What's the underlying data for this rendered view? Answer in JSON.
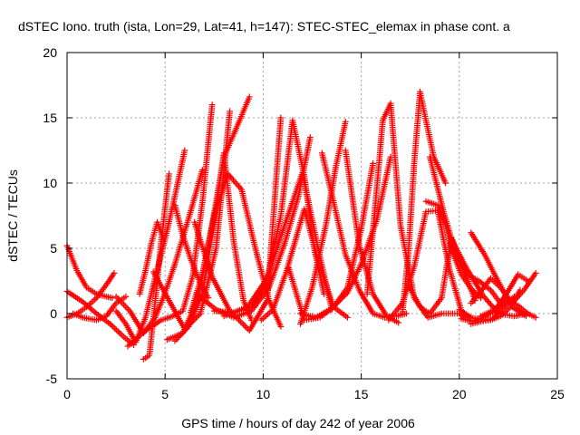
{
  "chart_data": {
    "type": "scatter",
    "title": "dSTEC Iono. truth (ista, Lon=29, Lat=41, h=147): STEC-STEC_elemax in phase cont. a",
    "xlabel": "GPS time / hours of day 242 of year 2006",
    "ylabel": "dSTEC  / TECUs",
    "xlim": [
      0,
      25
    ],
    "ylim": [
      -5,
      20
    ],
    "xticks": [
      0,
      5,
      10,
      15,
      20,
      25
    ],
    "yticks": [
      -5,
      0,
      5,
      10,
      15,
      20
    ],
    "xtick_labels": [
      "0",
      "5",
      "10",
      "15",
      "20",
      "25"
    ],
    "ytick_labels": [
      "-5",
      "0",
      "5",
      "10",
      "15",
      "20"
    ],
    "grid": true,
    "marker": "+",
    "colors": {
      "series": "#ff0000",
      "grid": "#a0a0a0",
      "axis": "#000000"
    },
    "series": [
      {
        "x": [
          0.0,
          0.5,
          1.0,
          1.5,
          2.0,
          2.3
        ],
        "y": [
          5.2,
          3.3,
          2.0,
          1.5,
          1.3,
          1.2
        ]
      },
      {
        "x": [
          0.0,
          0.8,
          1.5,
          2.2,
          2.9,
          3.4
        ],
        "y": [
          1.7,
          0.9,
          0.0,
          -0.8,
          -1.8,
          -2.4
        ]
      },
      {
        "x": [
          0.0,
          0.5,
          1.0,
          1.5,
          2.0,
          2.4
        ],
        "y": [
          -0.3,
          0.0,
          0.5,
          1.2,
          2.2,
          3.1
        ]
      },
      {
        "x": [
          0.3,
          0.8,
          1.5,
          2.0,
          2.5,
          3.0
        ],
        "y": [
          0.0,
          -0.3,
          -0.5,
          -0.2,
          0.8,
          1.3
        ]
      },
      {
        "x": [
          2.5,
          3.2,
          3.9,
          4.5,
          5.0,
          5.5,
          6.2,
          6.9
        ],
        "y": [
          1.3,
          0.2,
          -1.5,
          -0.3,
          1.6,
          3.8,
          7.3,
          11.0
        ]
      },
      {
        "x": [
          3.9,
          4.2,
          4.5,
          4.8,
          5.2
        ],
        "y": [
          -3.5,
          -3.2,
          1.0,
          5.5,
          10.7
        ]
      },
      {
        "x": [
          2.5,
          3.0,
          3.5,
          4.0,
          4.5,
          5.0,
          5.5,
          6.0
        ],
        "y": [
          0.2,
          -0.8,
          -2.2,
          -0.3,
          2.8,
          5.7,
          9.0,
          12.5
        ]
      },
      {
        "x": [
          3.1,
          4.0,
          4.8,
          5.4,
          5.9,
          6.4,
          6.9,
          7.4
        ],
        "y": [
          -2.5,
          -1.3,
          -0.5,
          -0.2,
          0.2,
          2.8,
          8.5,
          16.0
        ]
      },
      {
        "x": [
          3.7,
          4.0,
          4.3,
          4.6,
          4.9
        ],
        "y": [
          1.5,
          3.3,
          5.4,
          7.0,
          5.8
        ]
      },
      {
        "x": [
          4.4,
          5.2,
          6.0,
          6.8,
          7.6,
          8.3
        ],
        "y": [
          3.2,
          1.0,
          -1.2,
          0.0,
          5.0,
          15.5
        ]
      },
      {
        "x": [
          5.1,
          5.9,
          6.7,
          7.4,
          8.0,
          8.8,
          9.3
        ],
        "y": [
          -2.0,
          -1.5,
          1.2,
          6.8,
          12.0,
          14.8,
          16.6
        ]
      },
      {
        "x": [
          5.5,
          6.2,
          6.9,
          7.5,
          8.0,
          8.5,
          9.0,
          9.4
        ],
        "y": [
          -2.1,
          -1.0,
          1.5,
          7.0,
          12.3,
          5.5,
          1.0,
          -0.5
        ]
      },
      {
        "x": [
          5.5,
          5.9,
          6.3,
          6.8,
          7.2
        ],
        "y": [
          8.3,
          6.0,
          4.2,
          2.3,
          1.2
        ]
      },
      {
        "x": [
          6.3,
          6.9,
          7.5,
          8.2,
          8.9,
          9.6,
          10.3,
          10.9
        ],
        "y": [
          0.1,
          3.0,
          7.5,
          10.7,
          9.5,
          5.0,
          1.0,
          -1.0
        ]
      },
      {
        "x": [
          6.5,
          7.4,
          8.3,
          9.3,
          10.2,
          10.9
        ],
        "y": [
          7.0,
          2.8,
          0.2,
          -1.3,
          1.0,
          15.0
        ]
      },
      {
        "x": [
          6.6,
          7.6,
          8.5,
          9.4,
          10.3,
          11.1,
          11.8,
          12.4
        ],
        "y": [
          1.5,
          0.3,
          -0.3,
          0.2,
          2.0,
          5.4,
          9.0,
          13.5
        ]
      },
      {
        "x": [
          7.5,
          8.5,
          9.4,
          10.2,
          10.9,
          11.5,
          12.1,
          12.6,
          13.1
        ],
        "y": [
          0.2,
          0.1,
          0.5,
          2.5,
          7.5,
          14.8,
          10.5,
          5.0,
          1.5
        ]
      },
      {
        "x": [
          8.0,
          9.2,
          10.2,
          11.1,
          12.0,
          12.8,
          13.5
        ],
        "y": [
          -0.2,
          0.5,
          2.7,
          6.8,
          10.8,
          5.0,
          0.3
        ]
      },
      {
        "x": [
          9.9,
          10.5,
          11.2,
          12.1,
          12.9,
          13.6,
          14.3
        ],
        "y": [
          -0.5,
          0.3,
          3.3,
          8.0,
          3.5,
          0.5,
          -0.3
        ]
      },
      {
        "x": [
          11.9,
          12.7,
          13.5,
          14.3,
          15.0,
          15.8,
          16.5
        ],
        "y": [
          0.0,
          -0.3,
          0.4,
          1.6,
          3.8,
          7.2,
          12.0
        ]
      },
      {
        "x": [
          11.3,
          12.1,
          12.9,
          13.6,
          14.3,
          15.0,
          15.6
        ],
        "y": [
          3.5,
          -0.5,
          -0.3,
          0.5,
          2.0,
          6.5,
          11.5
        ]
      },
      {
        "x": [
          11.9,
          12.5,
          13.2,
          13.7,
          14.2
        ],
        "y": [
          -0.8,
          2.0,
          6.8,
          11.2,
          14.7
        ]
      },
      {
        "x": [
          13.0,
          13.6,
          14.2,
          14.9,
          15.6,
          16.2,
          16.8,
          17.3
        ],
        "y": [
          12.3,
          8.5,
          4.5,
          1.8,
          0.0,
          -0.3,
          -0.2,
          0.0
        ]
      },
      {
        "x": [
          14.2,
          14.9,
          15.6,
          16.3,
          16.9
        ],
        "y": [
          12.5,
          5.2,
          1.5,
          -0.2,
          -0.7
        ]
      },
      {
        "x": [
          15.3,
          15.7,
          16.1,
          16.5,
          17.0,
          17.7,
          18.4,
          19.1,
          20.0,
          20.5
        ],
        "y": [
          1.5,
          8.0,
          14.8,
          16.1,
          6.8,
          1.2,
          -0.3,
          0.0,
          0.0,
          -0.5
        ]
      },
      {
        "x": [
          16.4,
          17.1,
          17.7,
          18.3,
          18.9,
          19.5,
          20.2
        ],
        "y": [
          -0.5,
          0.8,
          3.6,
          7.8,
          7.9,
          3.4,
          -0.3
        ]
      },
      {
        "x": [
          17.1,
          17.4,
          17.7,
          18.0,
          18.3,
          18.7,
          19.3
        ],
        "y": [
          0.0,
          4.5,
          11.5,
          17.0,
          14.8,
          12.0,
          10.0
        ]
      },
      {
        "x": [
          18.5,
          19.2,
          19.8,
          20.4,
          21.0,
          21.6,
          22.2
        ],
        "y": [
          12.0,
          7.8,
          4.7,
          3.0,
          2.5,
          1.8,
          0.6
        ]
      },
      {
        "x": [
          18.3,
          18.9,
          19.3,
          19.7,
          20.1,
          20.6,
          21.1
        ],
        "y": [
          8.6,
          8.3,
          6.8,
          4.5,
          3.0,
          1.9,
          1.2
        ]
      },
      {
        "x": [
          17.4,
          18.0,
          18.5,
          19.1,
          19.6,
          20.2,
          20.8
        ],
        "y": [
          2.2,
          0.5,
          0.0,
          1.2,
          5.8,
          3.5,
          1.0
        ]
      },
      {
        "x": [
          19.6,
          20.4,
          21.2,
          22.0,
          22.8,
          23.5
        ],
        "y": [
          5.7,
          3.4,
          1.4,
          0.0,
          -0.2,
          0.0
        ]
      },
      {
        "x": [
          20.6,
          21.3,
          22.0,
          22.7,
          23.4
        ],
        "y": [
          6.2,
          4.5,
          2.4,
          0.5,
          -0.2
        ]
      },
      {
        "x": [
          20.1,
          20.7,
          21.2,
          21.8,
          22.4,
          23.0,
          23.5
        ],
        "y": [
          -0.4,
          -0.6,
          -0.3,
          0.2,
          1.5,
          3.0,
          2.5
        ]
      },
      {
        "x": [
          20.6,
          21.1,
          21.6,
          22.1,
          22.6,
          23.1
        ],
        "y": [
          -0.8,
          -0.6,
          -0.5,
          -0.2,
          0.5,
          1.8
        ]
      },
      {
        "x": [
          20.6,
          21.1,
          21.6,
          22.1,
          22.7,
          23.3,
          23.9
        ],
        "y": [
          0.8,
          1.7,
          2.7,
          2.0,
          0.8,
          1.8,
          3.1
        ]
      },
      {
        "x": [
          21.1,
          21.8,
          22.5,
          23.0,
          23.5,
          23.9
        ],
        "y": [
          -0.2,
          0.3,
          1.0,
          0.6,
          0.0,
          -0.3
        ]
      },
      {
        "x": [
          20.0,
          20.6,
          21.2,
          21.7,
          22.2,
          22.8
        ],
        "y": [
          0.3,
          -0.3,
          -0.5,
          -0.4,
          0.4,
          1.3
        ]
      }
    ]
  }
}
